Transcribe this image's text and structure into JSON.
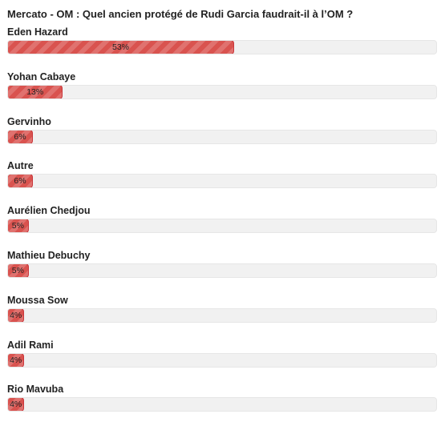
{
  "poll": {
    "title": "Mercato - OM : Quel ancien protégé de Rudi Garcia faudrait-il à l’OM ?",
    "bar_color": "#d9534f",
    "track_color": "#f1f1f1",
    "options": [
      {
        "label": "Eden Hazard",
        "percent": 53,
        "percent_text": "53%"
      },
      {
        "label": "Yohan Cabaye",
        "percent": 13,
        "percent_text": "13%"
      },
      {
        "label": "Gervinho",
        "percent": 6,
        "percent_text": "6%"
      },
      {
        "label": "Autre",
        "percent": 6,
        "percent_text": "6%"
      },
      {
        "label": "Aurélien Chedjou",
        "percent": 5,
        "percent_text": "5%"
      },
      {
        "label": "Mathieu Debuchy",
        "percent": 5,
        "percent_text": "5%"
      },
      {
        "label": "Moussa Sow",
        "percent": 4,
        "percent_text": "4%"
      },
      {
        "label": "Adil Rami",
        "percent": 4,
        "percent_text": "4%"
      },
      {
        "label": "Rio Mavuba",
        "percent": 4,
        "percent_text": "4%"
      }
    ]
  }
}
